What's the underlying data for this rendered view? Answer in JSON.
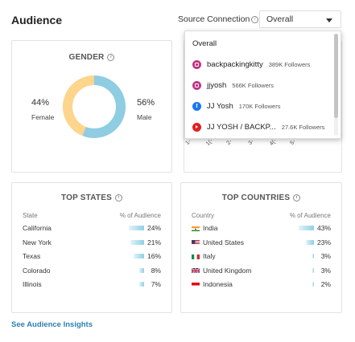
{
  "header": {
    "title": "Audience"
  },
  "source": {
    "label": "Source Connection",
    "suffix": ":",
    "selected": "Overall"
  },
  "gender": {
    "title": "GENDER",
    "female_pct": "44%",
    "female_label": "Female",
    "female_value": 44,
    "female_color": "#fdd58c",
    "male_pct": "56%",
    "male_label": "Male",
    "male_value": 56,
    "male_color": "#8ecde2"
  },
  "age": {
    "ticks": [
      "1-",
      "1(-",
      "2-",
      "3-",
      "4(-",
      "5-"
    ]
  },
  "states": {
    "title": "TOP STATES",
    "col_name": "State",
    "col_pct": "% of Audience",
    "rows": [
      {
        "name": "California",
        "pct": "24%",
        "value": 24
      },
      {
        "name": "New York",
        "pct": "21%",
        "value": 21
      },
      {
        "name": "Texas",
        "pct": "16%",
        "value": 16
      },
      {
        "name": "Colorado",
        "pct": "8%",
        "value": 8
      },
      {
        "name": "Illinois",
        "pct": "7%",
        "value": 7
      }
    ]
  },
  "countries": {
    "title": "TOP COUNTRIES",
    "col_name": "Country",
    "col_pct": "% of Audience",
    "rows": [
      {
        "name": "India",
        "pct": "43%",
        "value": 43,
        "flag": "flag-india-icon"
      },
      {
        "name": "United States",
        "pct": "23%",
        "value": 23,
        "flag": "flag-us-icon"
      },
      {
        "name": "Italy",
        "pct": "3%",
        "value": 3,
        "flag": "flag-italy-icon"
      },
      {
        "name": "United Kingdom",
        "pct": "3%",
        "value": 3,
        "flag": "flag-uk-icon"
      },
      {
        "name": "Indonesia",
        "pct": "2%",
        "value": 2,
        "flag": "flag-indonesia-icon"
      }
    ]
  },
  "insights_link": "See Audience Insights",
  "dropdown": {
    "items": [
      {
        "label": "Overall",
        "followers": "",
        "icon": ""
      },
      {
        "label": "backpackingkitty",
        "followers": "389K Followers",
        "icon": "instagram-icon"
      },
      {
        "label": "jjyosh",
        "followers": "566K Followers",
        "icon": "instagram-icon"
      },
      {
        "label": "JJ Yosh",
        "followers": "170K Followers",
        "icon": "facebook-icon"
      },
      {
        "label": "JJ YOSH / BACKP...",
        "followers": "27.6K Followers",
        "icon": "youtube-icon"
      }
    ]
  }
}
